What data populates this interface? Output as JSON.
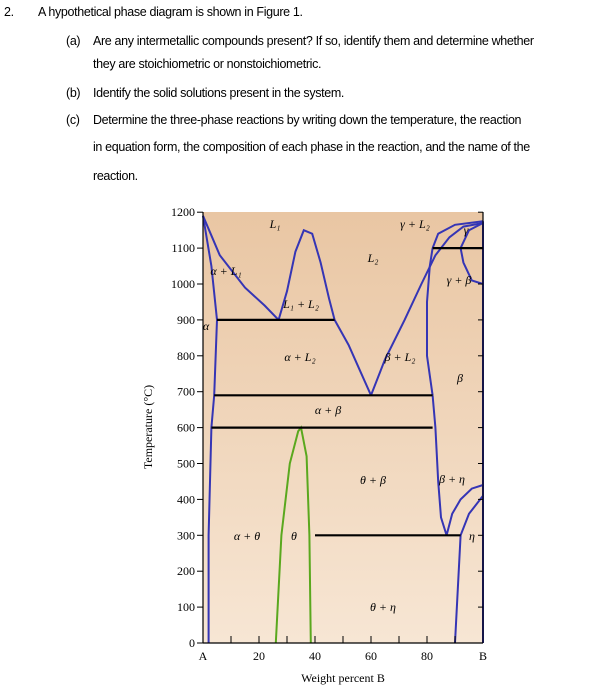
{
  "problem": {
    "number": "2.",
    "intro": "A hypothetical phase diagram is shown in Figure 1.",
    "items": [
      {
        "label": "(a)",
        "lines": [
          "Are any intermetallic compounds present? If so, identify them and determine whether",
          "they are stoichiometric or nonstoichiometric."
        ]
      },
      {
        "label": "(b)",
        "lines": [
          "Identify the solid solutions present in the system."
        ]
      },
      {
        "label": "(c)",
        "lines": [
          "Determine the three-phase reactions by writing down the temperature, the reaction",
          "in equation form, the composition of each phase in the reaction, and the name of the",
          "reaction."
        ]
      }
    ]
  },
  "figure": {
    "y_axis_label": "Temperature (°C)",
    "x_axis_label": "Weight percent B",
    "yticks": [
      0,
      100,
      200,
      300,
      400,
      500,
      600,
      700,
      800,
      900,
      1000,
      1100,
      1200
    ],
    "xticks": [
      "A",
      "20",
      "40",
      "60",
      "80",
      "B"
    ],
    "regions": [
      "L₁",
      "γ + L₂",
      "γ",
      "L₂",
      "α + L₁",
      "γ + β",
      "L₁ + L₂",
      "α",
      "α + L₂",
      "β + L₂",
      "β",
      "α + β",
      "θ + β",
      "β + η",
      "α + θ",
      "θ",
      "η",
      "θ + η"
    ]
  }
}
